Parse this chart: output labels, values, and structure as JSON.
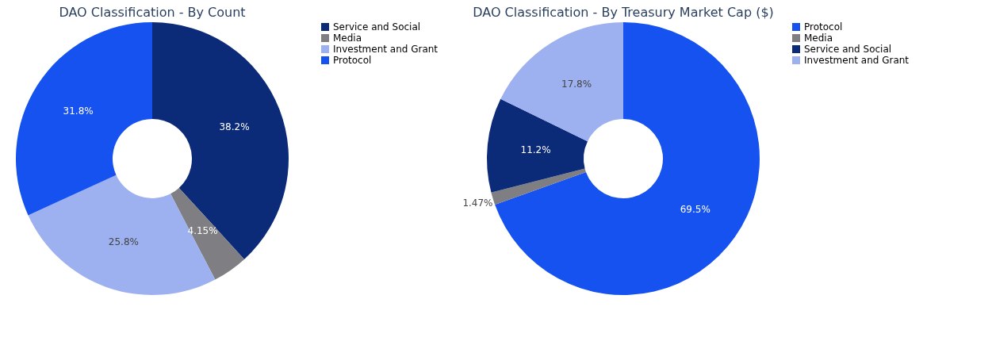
{
  "chart_data": [
    {
      "type": "donut",
      "title": "DAO Classification - By Count",
      "categories": [
        "Service and Social",
        "Media",
        "Investment and Grant",
        "Protocol"
      ],
      "values": [
        38.2,
        4.15,
        25.8,
        31.8
      ],
      "colors": [
        "#0b2a78",
        "#7f7f83",
        "#9db0f0",
        "#1652f0"
      ],
      "value_labels": [
        "38.2%",
        "4.15%",
        "25.8%",
        "31.8%"
      ],
      "legend": "top right"
    },
    {
      "type": "donut",
      "title": "DAO Classification - By Treasury Market Cap ($)",
      "categories": [
        "Protocol",
        "Media",
        "Service and Social",
        "Investment and Grant"
      ],
      "values": [
        69.5,
        1.47,
        11.2,
        17.8
      ],
      "colors": [
        "#1652f0",
        "#7f7f83",
        "#0b2a78",
        "#9db0f0"
      ],
      "value_labels": [
        "69.5%",
        "1.47%",
        "11.2%",
        "17.8%"
      ],
      "legend": "top right"
    }
  ]
}
